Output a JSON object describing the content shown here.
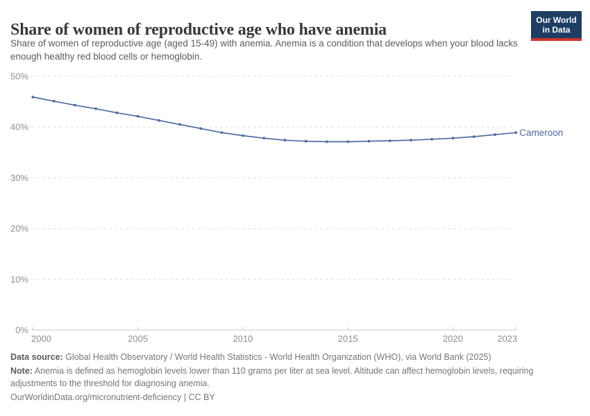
{
  "header": {
    "title": "Share of women of reproductive age who have anemia",
    "subtitle": "Share of women of reproductive age (aged 15-49) with anemia. Anemia is a condition that develops when your blood lacks enough healthy red blood cells or hemoglobin."
  },
  "logo": {
    "line1": "Our World",
    "line2": "in Data",
    "background": "#1d3d63",
    "stripe": "#d0342c"
  },
  "chart_data": {
    "type": "line",
    "title": "Share of women of reproductive age who have anemia",
    "x": [
      2000,
      2001,
      2002,
      2003,
      2004,
      2005,
      2006,
      2007,
      2008,
      2009,
      2010,
      2011,
      2012,
      2013,
      2014,
      2015,
      2016,
      2017,
      2018,
      2019,
      2020,
      2021,
      2022,
      2023
    ],
    "series": [
      {
        "name": "Cameroon",
        "color": "#4c6ba0",
        "values": [
          45.9,
          45.1,
          44.3,
          43.6,
          42.8,
          42.1,
          41.3,
          40.5,
          39.7,
          38.9,
          38.3,
          37.8,
          37.4,
          37.2,
          37.1,
          37.1,
          37.2,
          37.3,
          37.4,
          37.6,
          37.8,
          38.1,
          38.5,
          38.9
        ]
      }
    ],
    "ylim": [
      0,
      50
    ],
    "yticks": [
      0,
      10,
      20,
      30,
      40,
      50
    ],
    "ytick_suffix": "%",
    "xticks": [
      2000,
      2005,
      2010,
      2015,
      2020,
      2023
    ],
    "grid": "horizontal-dashed",
    "legend_position": "end-of-line-label"
  },
  "footer": {
    "data_source_label": "Data source:",
    "data_source_text": " Global Health Observatory / World Health Statistics - World Health Organization (WHO), via World Bank (2025)",
    "note_label": "Note:",
    "note_text": " Anemia is defined as hemoglobin levels lower than 110 grams per liter at sea level. Altitude can affect hemoglobin levels, requiring adjustments to the threshold for diagnosing anemia.",
    "citation": "OurWorldinData.org/micronutrient-deficiency | CC BY"
  }
}
